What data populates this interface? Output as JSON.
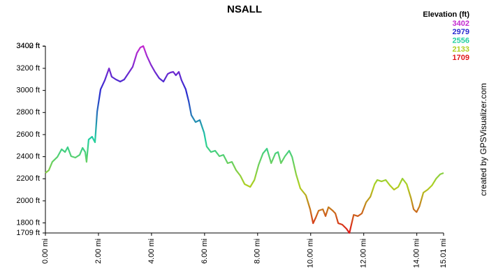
{
  "chart_data": {
    "type": "line",
    "title": "NSALL",
    "side_note": "created by GPSVisualizer.com",
    "color_scale": {
      "title": "Elevation (ft)",
      "stops": [
        {
          "value": 3402,
          "color": "#c42ad0"
        },
        {
          "value": 2979,
          "color": "#2a2ad0"
        },
        {
          "value": 2556,
          "color": "#22d0a0"
        },
        {
          "value": 2133,
          "color": "#b0d020"
        },
        {
          "value": 1709,
          "color": "#e01818"
        }
      ]
    },
    "x": [
      0,
      0.13,
      0.26,
      0.45,
      0.61,
      0.74,
      0.84,
      0.97,
      1.13,
      1.29,
      1.4,
      1.5,
      1.55,
      1.63,
      1.76,
      1.87,
      1.95,
      2.08,
      2.24,
      2.4,
      2.5,
      2.66,
      2.82,
      2.97,
      3.13,
      3.29,
      3.45,
      3.58,
      3.69,
      3.82,
      3.98,
      4.13,
      4.29,
      4.45,
      4.61,
      4.71,
      4.82,
      4.92,
      5.03,
      5.13,
      5.29,
      5.4,
      5.5,
      5.66,
      5.82,
      5.98,
      6.08,
      6.24,
      6.4,
      6.56,
      6.71,
      6.87,
      7.03,
      7.19,
      7.35,
      7.51,
      7.72,
      7.88,
      8.04,
      8.2,
      8.35,
      8.51,
      8.67,
      8.77,
      8.88,
      9.03,
      9.19,
      9.3,
      9.45,
      9.61,
      9.82,
      9.98,
      10.09,
      10.19,
      10.3,
      10.46,
      10.56,
      10.67,
      10.83,
      10.93,
      11.04,
      11.19,
      11.35,
      11.46,
      11.62,
      11.78,
      11.93,
      12.09,
      12.25,
      12.41,
      12.51,
      12.67,
      12.83,
      12.99,
      13.14,
      13.3,
      13.46,
      13.62,
      13.78,
      13.88,
      13.99,
      14.1,
      14.25,
      14.41,
      14.57,
      14.73,
      14.88,
      15.01
    ],
    "values": [
      2252,
      2277,
      2353,
      2397,
      2467,
      2442,
      2486,
      2404,
      2391,
      2416,
      2480,
      2442,
      2353,
      2555,
      2581,
      2530,
      2808,
      3010,
      3093,
      3200,
      3124,
      3099,
      3080,
      3099,
      3156,
      3213,
      3339,
      3389,
      3402,
      3314,
      3232,
      3168,
      3111,
      3080,
      3149,
      3162,
      3168,
      3137,
      3168,
      3093,
      3010,
      2902,
      2776,
      2713,
      2732,
      2618,
      2492,
      2442,
      2454,
      2404,
      2416,
      2341,
      2353,
      2277,
      2227,
      2151,
      2126,
      2189,
      2328,
      2429,
      2473,
      2341,
      2429,
      2442,
      2341,
      2404,
      2454,
      2397,
      2240,
      2113,
      2050,
      1924,
      1797,
      1848,
      1911,
      1924,
      1861,
      1943,
      1911,
      1886,
      1797,
      1785,
      1747,
      1709,
      1873,
      1861,
      1886,
      1987,
      2037,
      2151,
      2189,
      2176,
      2189,
      2139,
      2101,
      2126,
      2202,
      2151,
      2025,
      1924,
      1898,
      1949,
      2075,
      2101,
      2139,
      2202,
      2240,
      2252
    ],
    "xlim": [
      0,
      15.01
    ],
    "ylim": [
      1709,
      3402
    ],
    "xticks": [
      {
        "value": 0,
        "label": "0.00 mi"
      },
      {
        "value": 2,
        "label": "2.00 mi"
      },
      {
        "value": 4,
        "label": "4.00 mi"
      },
      {
        "value": 6,
        "label": "6.00 mi"
      },
      {
        "value": 8,
        "label": "8.00 mi"
      },
      {
        "value": 10,
        "label": "10.00 mi"
      },
      {
        "value": 12,
        "label": "12.00 mi"
      },
      {
        "value": 14,
        "label": "14.00 mi"
      },
      {
        "value": 15.01,
        "label": "15.01 mi"
      }
    ],
    "yticks": [
      {
        "value": 1709,
        "label": "1709 ft"
      },
      {
        "value": 1800,
        "label": "1800 ft"
      },
      {
        "value": 2000,
        "label": "2000 ft"
      },
      {
        "value": 2200,
        "label": "2200 ft"
      },
      {
        "value": 2400,
        "label": "2400 ft"
      },
      {
        "value": 2600,
        "label": "2600 ft"
      },
      {
        "value": 2800,
        "label": "2800 ft"
      },
      {
        "value": 3000,
        "label": "3000 ft"
      },
      {
        "value": 3200,
        "label": "3200 ft"
      },
      {
        "value": 3400,
        "label": "3400 ft"
      },
      {
        "value": 3402,
        "label": "3402 ft"
      }
    ]
  }
}
